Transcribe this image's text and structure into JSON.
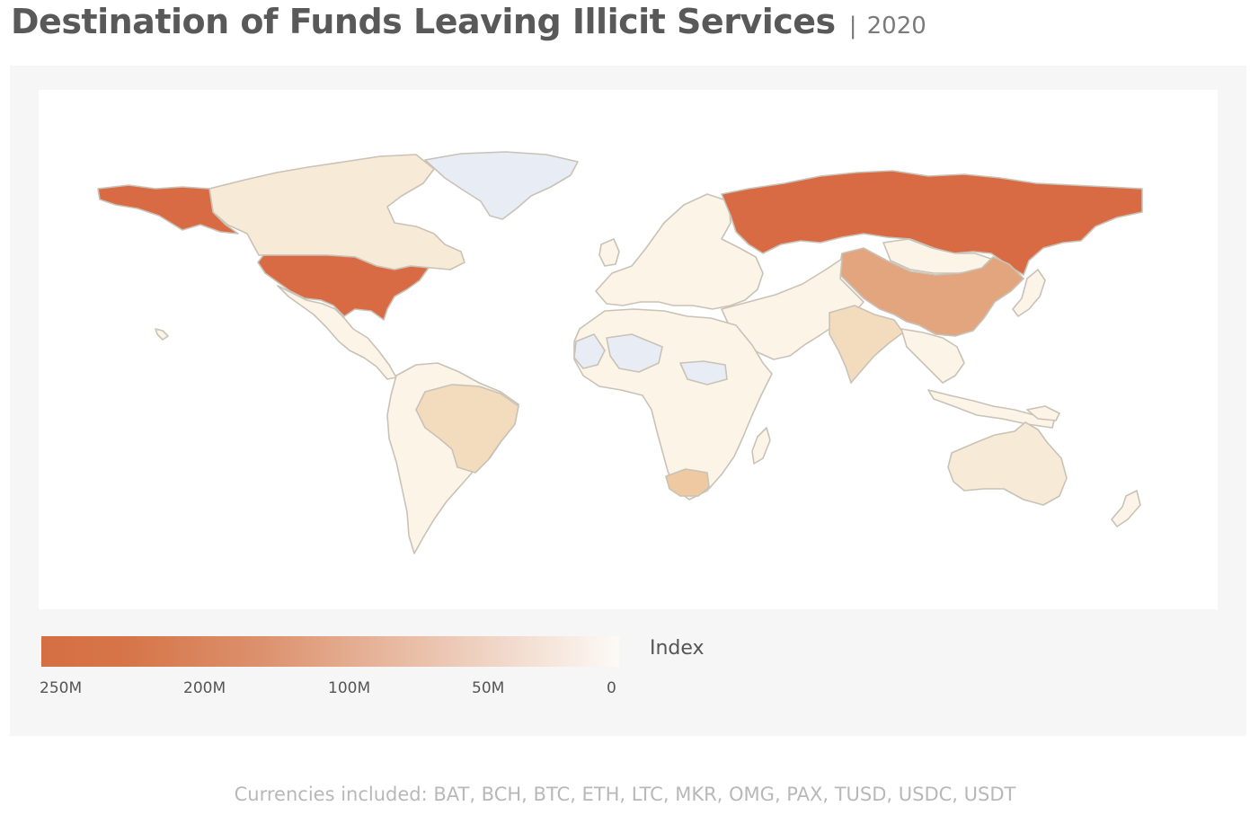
{
  "title": "Destination of Funds Leaving Illicit Services",
  "title_separator": "|",
  "year": "2020",
  "legend": {
    "title": "Index",
    "ticks": [
      "250M",
      "200M",
      "100M",
      "50M",
      "0"
    ],
    "color_high": "#d56f43",
    "color_low": "#fdfaf6"
  },
  "colors": {
    "no_data": "#e8ecf4",
    "very_high": "#d86b43",
    "high": "#e2a57e",
    "medium": "#eec9a2",
    "low_medium": "#f2dcbd",
    "low": "#f7ead6",
    "very_low": "#fbf4e7"
  },
  "regions": [
    {
      "name": "United States",
      "level": "very_high"
    },
    {
      "name": "Alaska",
      "level": "very_high"
    },
    {
      "name": "Russia",
      "level": "very_high"
    },
    {
      "name": "China",
      "level": "high"
    },
    {
      "name": "South Africa",
      "level": "medium"
    },
    {
      "name": "Canada",
      "level": "low"
    },
    {
      "name": "Brazil",
      "level": "low_medium"
    },
    {
      "name": "Australia",
      "level": "low"
    },
    {
      "name": "India",
      "level": "low_medium"
    },
    {
      "name": "Mongolia",
      "level": "very_low"
    },
    {
      "name": "Greenland",
      "level": "no_data"
    },
    {
      "name": "Mali",
      "level": "no_data"
    },
    {
      "name": "Mauritania",
      "level": "no_data"
    },
    {
      "name": "South Sudan",
      "level": "no_data"
    }
  ],
  "footnote": "Currencies included: BAT, BCH, BTC, ETH, LTC, MKR, OMG, PAX, TUSD, USDC, USDT"
}
